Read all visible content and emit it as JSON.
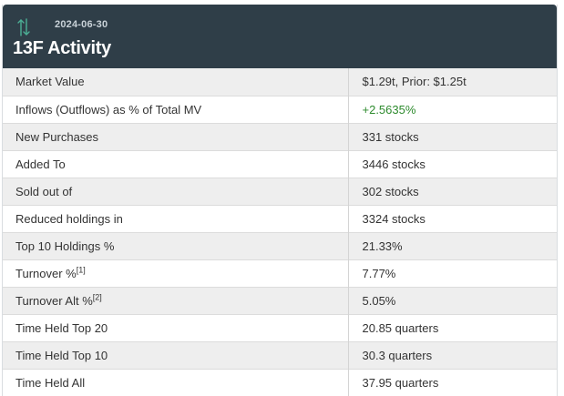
{
  "header": {
    "date": "2024-06-30",
    "title": "13F Activity",
    "icon": "arrows-up-down-icon"
  },
  "colors": {
    "header_bg": "#2f3e48",
    "positive": "#2e8b2e",
    "icon": "#4caf95"
  },
  "rows": [
    {
      "label": "Market Value",
      "note": "",
      "value": "$1.29t, Prior: $1.25t"
    },
    {
      "label": "Inflows (Outflows) as % of Total MV",
      "note": "",
      "value": "+2.5635%"
    },
    {
      "label": "New Purchases",
      "note": "",
      "value": "331 stocks"
    },
    {
      "label": "Added To",
      "note": "",
      "value": "3446 stocks"
    },
    {
      "label": "Sold out of",
      "note": "",
      "value": "302 stocks"
    },
    {
      "label": "Reduced holdings in",
      "note": "",
      "value": "3324 stocks"
    },
    {
      "label": "Top 10 Holdings %",
      "note": "",
      "value": "21.33%"
    },
    {
      "label": "Turnover %",
      "note": "[1]",
      "value": "7.77%"
    },
    {
      "label": "Turnover Alt %",
      "note": "[2]",
      "value": "5.05%"
    },
    {
      "label": "Time Held Top 20",
      "note": "",
      "value": "20.85 quarters"
    },
    {
      "label": "Time Held Top 10",
      "note": "",
      "value": "30.3 quarters"
    },
    {
      "label": "Time Held All",
      "note": "",
      "value": "37.95 quarters"
    }
  ]
}
